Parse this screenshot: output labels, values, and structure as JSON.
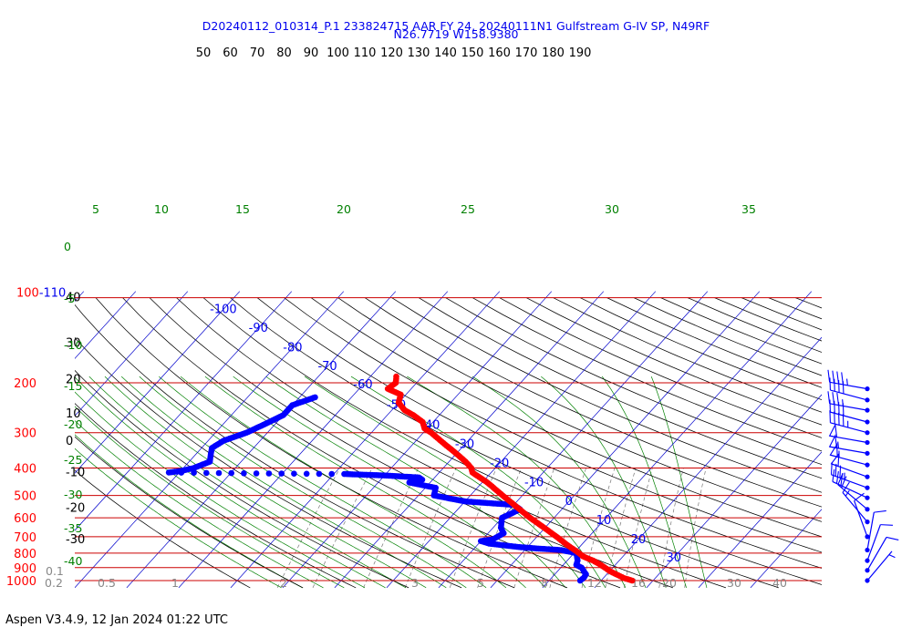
{
  "header": {
    "line1": "D20240112_010314_P.1 233824715 AAR FY 24, 20240111N1 Gulfstream G-IV SP, N49RF",
    "line2": "N26.7719 W158.9380"
  },
  "footer": {
    "text": "Aspen V3.4.9, 12 Jan 2024  01:22 UTC"
  },
  "colors": {
    "temperature": "#ff0000",
    "dewpoint": "#0000ff",
    "isobar": "#cc0000",
    "isotherm": "#0000cc",
    "dry_adiabat": "#000000",
    "moist_adiabat": "#008000",
    "mixing_ratio": "#777777",
    "text_blue": "#0000ee",
    "text_red": "#ff0000",
    "text_green": "#008000"
  },
  "chart_data": {
    "type": "skew-t log-p",
    "pressure_axis": {
      "unit": "hPa",
      "levels": [
        1000,
        900,
        800,
        700,
        600,
        500,
        400,
        300,
        200
      ],
      "top_label": "100-110"
    },
    "isotherm_labels": [
      "-100",
      "-90",
      "-80",
      "-70",
      "-60",
      "-50",
      "-40",
      "-30",
      "-20",
      "-10",
      "0",
      "10",
      "20",
      "30"
    ],
    "dry_adiabat_labels": [
      "50",
      "60",
      "70",
      "80",
      "90",
      "100",
      "110",
      "120",
      "130",
      "140",
      "150",
      "160",
      "170",
      "180",
      "190"
    ],
    "left_scale_labels": [
      {
        "value": "40",
        "pressure": 100
      },
      {
        "value": "30",
        "pressure": 145
      },
      {
        "value": "20",
        "pressure": 195
      },
      {
        "value": "10",
        "pressure": 257
      },
      {
        "value": "0",
        "pressure": 322
      },
      {
        "value": "-10",
        "pressure": 415
      },
      {
        "value": "-20",
        "pressure": 555
      },
      {
        "value": "-30",
        "pressure": 715
      }
    ],
    "moist_adiabat_labels_top": [
      "5",
      "10",
      "15",
      "20",
      "25",
      "30",
      "35"
    ],
    "moist_adiabat_labels_left": [
      "0",
      "-5",
      "-10",
      "-15",
      "-20",
      "-25",
      "-30",
      "-35",
      "-40"
    ],
    "mixing_ratio_labels": [
      "0.1",
      "0.2",
      "0.5",
      "1",
      "2",
      "3",
      "5",
      "8",
      "12",
      "16",
      "20",
      "30",
      "40"
    ],
    "temperature_profile": [
      {
        "p": 1000,
        "t": 26.0
      },
      {
        "p": 980,
        "t": 24.0
      },
      {
        "p": 950,
        "t": 21.8
      },
      {
        "p": 925,
        "t": 20.0
      },
      {
        "p": 900,
        "t": 18.5
      },
      {
        "p": 880,
        "t": 17.2
      },
      {
        "p": 850,
        "t": 15.0
      },
      {
        "p": 820,
        "t": 12.2
      },
      {
        "p": 800,
        "t": 11.0
      },
      {
        "p": 780,
        "t": 9.6
      },
      {
        "p": 750,
        "t": 7.4
      },
      {
        "p": 700,
        "t": 3.8
      },
      {
        "p": 650,
        "t": -0.2
      },
      {
        "p": 600,
        "t": -4.6
      },
      {
        "p": 550,
        "t": -9.0
      },
      {
        "p": 500,
        "t": -13.8
      },
      {
        "p": 450,
        "t": -19.0
      },
      {
        "p": 415,
        "t": -23.6
      },
      {
        "p": 400,
        "t": -24.6
      },
      {
        "p": 380,
        "t": -26.8
      },
      {
        "p": 350,
        "t": -30.8
      },
      {
        "p": 330,
        "t": -33.8
      },
      {
        "p": 300,
        "t": -38.5
      },
      {
        "p": 290,
        "t": -40.5
      },
      {
        "p": 275,
        "t": -42.0
      },
      {
        "p": 260,
        "t": -45.0
      },
      {
        "p": 250,
        "t": -47.5
      },
      {
        "p": 235,
        "t": -50.0
      },
      {
        "p": 220,
        "t": -51.0
      },
      {
        "p": 210,
        "t": -54.5
      },
      {
        "p": 200,
        "t": -54.0
      },
      {
        "p": 190,
        "t": -55.0
      }
    ],
    "dewpoint_profile": [
      {
        "p": 1000,
        "td": 16.0
      },
      {
        "p": 975,
        "td": 16.2
      },
      {
        "p": 950,
        "td": 16.0
      },
      {
        "p": 925,
        "td": 15.0
      },
      {
        "p": 900,
        "td": 14.0
      },
      {
        "p": 880,
        "td": 12.5
      },
      {
        "p": 850,
        "td": 12.0
      },
      {
        "p": 800,
        "td": 10.5
      },
      {
        "p": 780,
        "td": 7.0
      },
      {
        "p": 770,
        "td": 2.0
      },
      {
        "p": 760,
        "td": -2.0
      },
      {
        "p": 740,
        "td": -8.0
      },
      {
        "p": 725,
        "td": -10.0
      },
      {
        "p": 715,
        "td": -8.0
      },
      {
        "p": 680,
        "td": -7.0
      },
      {
        "p": 650,
        "td": -8.5
      },
      {
        "p": 600,
        "td": -10.0
      },
      {
        "p": 560,
        "td": -8.0
      },
      {
        "p": 540,
        "td": -10.0
      },
      {
        "p": 525,
        "td": -20.0
      },
      {
        "p": 500,
        "td": -27.0
      },
      {
        "p": 470,
        "td": -28.0
      },
      {
        "p": 450,
        "td": -34.0
      },
      {
        "p": 440,
        "td": -32.0
      },
      {
        "p": 432,
        "td": -33.0
      },
      {
        "p": 425,
        "td": -40.0
      },
      {
        "p": 420,
        "td": -48.0
      },
      {
        "p": 418,
        "td": -65.0
      },
      {
        "p": 415,
        "td": -82.0
      },
      {
        "p": 410,
        "td": -80.0
      },
      {
        "p": 400,
        "td": -78.0
      },
      {
        "p": 380,
        "td": -76.0
      },
      {
        "p": 360,
        "td": -77.0
      },
      {
        "p": 340,
        "td": -78.0
      },
      {
        "p": 320,
        "td": -77.0
      },
      {
        "p": 300,
        "td": -74.0
      },
      {
        "p": 280,
        "td": -72.0
      },
      {
        "p": 260,
        "td": -70.0
      },
      {
        "p": 240,
        "td": -70.0
      },
      {
        "p": 225,
        "td": -67.0
      }
    ],
    "wind_barbs": [
      {
        "p": 210,
        "dir": 280,
        "kt": 45
      },
      {
        "p": 230,
        "dir": 285,
        "kt": 40
      },
      {
        "p": 250,
        "dir": 280,
        "kt": 35
      },
      {
        "p": 275,
        "dir": 285,
        "kt": 40
      },
      {
        "p": 300,
        "dir": 285,
        "kt": 45
      },
      {
        "p": 325,
        "dir": 280,
        "kt": 50
      },
      {
        "p": 355,
        "dir": 280,
        "kt": 55
      },
      {
        "p": 390,
        "dir": 285,
        "kt": 55
      },
      {
        "p": 430,
        "dir": 290,
        "kt": 50
      },
      {
        "p": 470,
        "dir": 290,
        "kt": 35
      },
      {
        "p": 510,
        "dir": 295,
        "kt": 30
      },
      {
        "p": 560,
        "dir": 310,
        "kt": 20
      },
      {
        "p": 620,
        "dir": 320,
        "kt": 15
      },
      {
        "p": 700,
        "dir": 340,
        "kt": 10
      },
      {
        "p": 780,
        "dir": 10,
        "kt": 10
      },
      {
        "p": 850,
        "dir": 20,
        "kt": 10
      },
      {
        "p": 920,
        "dir": 30,
        "kt": 10
      },
      {
        "p": 1000,
        "dir": 40,
        "kt": 5
      }
    ]
  }
}
